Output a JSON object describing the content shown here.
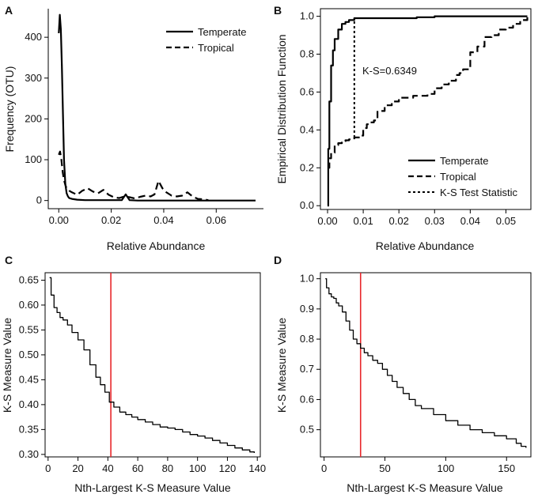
{
  "chart_data": [
    {
      "panel": "A",
      "type": "line",
      "title": "",
      "xlabel": "Relative Abundance",
      "ylabel": "Frequency (OTU)",
      "xlim": [
        -0.004,
        0.078
      ],
      "ylim": [
        -20,
        470
      ],
      "xticks": [
        0.0,
        0.02,
        0.04,
        0.06
      ],
      "xtick_labels": [
        "0.00",
        "0.02",
        "0.04",
        "0.06"
      ],
      "yticks": [
        0,
        100,
        200,
        300,
        400
      ],
      "ytick_labels": [
        "0",
        "100",
        "200",
        "300",
        "400"
      ],
      "legend": [
        "Temperate",
        "Tropical"
      ],
      "legend_position": "top-right",
      "series": [
        {
          "name": "Temperate",
          "style": "solid",
          "x": [
            0.0,
            0.0004,
            0.0008,
            0.0012,
            0.0016,
            0.002,
            0.0025,
            0.003,
            0.0035,
            0.004,
            0.005,
            0.007,
            0.01,
            0.015,
            0.02,
            0.024,
            0.0255,
            0.027,
            0.03,
            0.035,
            0.04,
            0.05,
            0.06,
            0.07,
            0.075
          ],
          "y": [
            410,
            455,
            420,
            330,
            210,
            100,
            40,
            18,
            10,
            6,
            4,
            2,
            1,
            1,
            1,
            1,
            15,
            1,
            0,
            0,
            0,
            0,
            0,
            0,
            0
          ]
        },
        {
          "name": "Tropical",
          "style": "dashed",
          "x": [
            0.0,
            0.0005,
            0.001,
            0.0015,
            0.002,
            0.0025,
            0.003,
            0.004,
            0.005,
            0.007,
            0.009,
            0.011,
            0.013,
            0.015,
            0.017,
            0.019,
            0.021,
            0.023,
            0.025,
            0.027,
            0.029,
            0.031,
            0.033,
            0.035,
            0.0365,
            0.038,
            0.0395,
            0.041,
            0.043,
            0.045,
            0.047,
            0.049,
            0.051,
            0.053,
            0.055,
            0.057
          ],
          "y": [
            112,
            120,
            100,
            70,
            50,
            38,
            30,
            24,
            20,
            14,
            24,
            30,
            22,
            18,
            26,
            14,
            8,
            6,
            10,
            8,
            5,
            9,
            12,
            10,
            15,
            48,
            30,
            20,
            12,
            10,
            12,
            20,
            10,
            4,
            3,
            1
          ]
        }
      ]
    },
    {
      "panel": "B",
      "type": "line",
      "title": "",
      "xlabel": "Relative Abundance",
      "ylabel": "Empirical Distribution Function",
      "xlim": [
        -0.002,
        0.057
      ],
      "ylim": [
        -0.02,
        1.04
      ],
      "xticks": [
        0.0,
        0.01,
        0.02,
        0.03,
        0.04,
        0.05
      ],
      "xtick_labels": [
        "0.00",
        "0.01",
        "0.02",
        "0.03",
        "0.04",
        "0.05"
      ],
      "yticks": [
        0.0,
        0.2,
        0.4,
        0.6,
        0.8,
        1.0
      ],
      "ytick_labels": [
        "0.0",
        "0.2",
        "0.4",
        "0.6",
        "0.8",
        "1.0"
      ],
      "legend": [
        "Temperate",
        "Tropical",
        "K-S Test Statistic"
      ],
      "legend_position": "bottom-right",
      "annotation": "K-S=0.6349",
      "ks_x": 0.0075,
      "ks_y": [
        0.36,
        0.99
      ],
      "series": [
        {
          "name": "Temperate",
          "style": "solid",
          "x": [
            0.0,
            0.0002,
            0.0005,
            0.001,
            0.0015,
            0.002,
            0.003,
            0.004,
            0.005,
            0.006,
            0.0075,
            0.01,
            0.015,
            0.02,
            0.025,
            0.03,
            0.035,
            0.04,
            0.045,
            0.05,
            0.056
          ],
          "y": [
            0.0,
            0.3,
            0.55,
            0.74,
            0.82,
            0.88,
            0.93,
            0.96,
            0.97,
            0.98,
            0.99,
            0.99,
            0.99,
            0.99,
            0.995,
            1.0,
            1.0,
            1.0,
            1.0,
            1.0,
            1.0
          ]
        },
        {
          "name": "Tropical",
          "style": "dashed",
          "x": [
            0.0,
            0.0005,
            0.001,
            0.002,
            0.003,
            0.004,
            0.005,
            0.006,
            0.0075,
            0.009,
            0.01,
            0.011,
            0.012,
            0.013,
            0.014,
            0.016,
            0.018,
            0.02,
            0.022,
            0.024,
            0.026,
            0.028,
            0.03,
            0.032,
            0.034,
            0.036,
            0.037,
            0.038,
            0.04,
            0.042,
            0.044,
            0.046,
            0.048,
            0.05,
            0.052,
            0.054,
            0.056
          ],
          "y": [
            0.2,
            0.25,
            0.28,
            0.32,
            0.33,
            0.34,
            0.345,
            0.35,
            0.36,
            0.37,
            0.41,
            0.43,
            0.44,
            0.45,
            0.5,
            0.53,
            0.55,
            0.57,
            0.57,
            0.58,
            0.58,
            0.59,
            0.62,
            0.64,
            0.66,
            0.69,
            0.7,
            0.72,
            0.81,
            0.84,
            0.89,
            0.9,
            0.93,
            0.94,
            0.96,
            0.98,
            1.0
          ]
        }
      ]
    },
    {
      "panel": "C",
      "type": "line",
      "title": "",
      "xlabel": "Nth-Largest K-S Measure Value",
      "ylabel": "K-S Measure Value",
      "xlim": [
        -2,
        142
      ],
      "ylim": [
        0.295,
        0.665
      ],
      "xticks": [
        0,
        20,
        40,
        60,
        80,
        100,
        120,
        140
      ],
      "xtick_labels": [
        "0",
        "20",
        "40",
        "60",
        "80",
        "100",
        "120",
        "140"
      ],
      "yticks": [
        0.3,
        0.35,
        0.4,
        0.45,
        0.5,
        0.55,
        0.6,
        0.65
      ],
      "ytick_labels": [
        "0.30",
        "0.35",
        "0.40",
        "0.45",
        "0.50",
        "0.55",
        "0.60",
        "0.65"
      ],
      "vline_x": 42,
      "vline_color": "#e8262b",
      "series": [
        {
          "name": "K-S measure",
          "style": "solid",
          "x": [
            1,
            2,
            4,
            6,
            8,
            10,
            13,
            16,
            20,
            24,
            28,
            32,
            35,
            38,
            41,
            44,
            48,
            52,
            56,
            60,
            65,
            70,
            75,
            80,
            85,
            90,
            95,
            100,
            105,
            110,
            115,
            120,
            125,
            130,
            135,
            138
          ],
          "y": [
            0.655,
            0.62,
            0.595,
            0.585,
            0.575,
            0.57,
            0.56,
            0.545,
            0.53,
            0.51,
            0.48,
            0.455,
            0.44,
            0.425,
            0.405,
            0.395,
            0.385,
            0.38,
            0.375,
            0.37,
            0.365,
            0.36,
            0.355,
            0.353,
            0.35,
            0.345,
            0.34,
            0.337,
            0.333,
            0.328,
            0.323,
            0.318,
            0.313,
            0.309,
            0.305,
            0.303
          ]
        }
      ]
    },
    {
      "panel": "D",
      "type": "line",
      "title": "",
      "xlabel": "Nth-Largest K-S Measure Value",
      "ylabel": "K-S Measure Value",
      "xlim": [
        -3,
        170
      ],
      "ylim": [
        0.41,
        1.02
      ],
      "xticks": [
        0,
        50,
        100,
        150
      ],
      "xtick_labels": [
        "0",
        "50",
        "100",
        "150"
      ],
      "yticks": [
        0.5,
        0.6,
        0.7,
        0.8,
        0.9,
        1.0
      ],
      "ytick_labels": [
        "0.5",
        "0.6",
        "0.7",
        "0.8",
        "0.9",
        "1.0"
      ],
      "vline_x": 30,
      "vline_color": "#e8262b",
      "series": [
        {
          "name": "K-S measure",
          "style": "solid",
          "x": [
            1,
            2,
            4,
            6,
            8,
            10,
            12,
            15,
            18,
            21,
            24,
            27,
            30,
            33,
            36,
            40,
            44,
            48,
            52,
            56,
            60,
            65,
            70,
            75,
            80,
            90,
            100,
            110,
            120,
            130,
            140,
            150,
            158,
            162,
            166
          ],
          "y": [
            1.0,
            0.97,
            0.95,
            0.94,
            0.935,
            0.92,
            0.91,
            0.89,
            0.86,
            0.83,
            0.8,
            0.785,
            0.77,
            0.755,
            0.745,
            0.73,
            0.72,
            0.7,
            0.68,
            0.66,
            0.64,
            0.62,
            0.6,
            0.58,
            0.57,
            0.55,
            0.53,
            0.515,
            0.5,
            0.49,
            0.48,
            0.47,
            0.455,
            0.445,
            0.44
          ]
        }
      ]
    }
  ]
}
